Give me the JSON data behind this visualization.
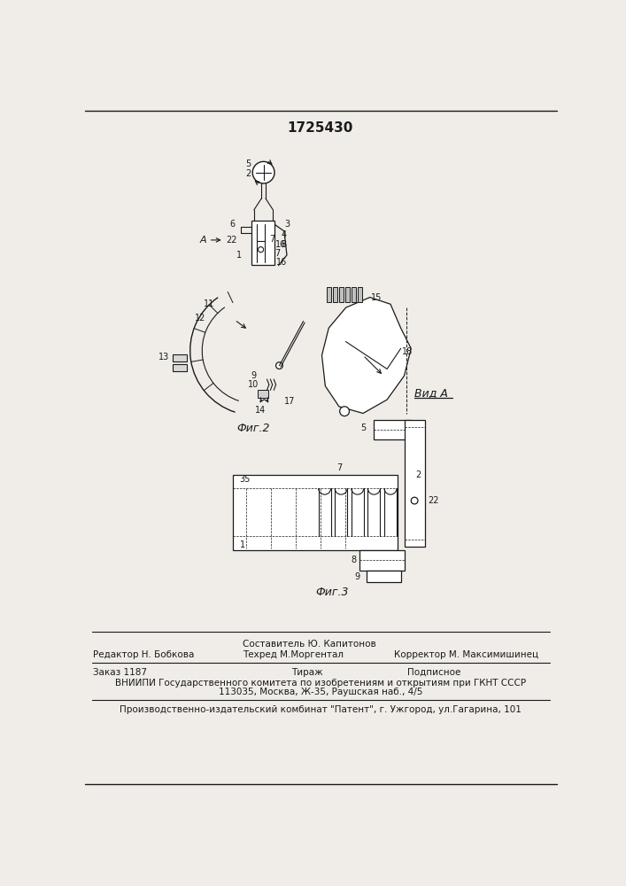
{
  "title": "1725430",
  "bg_color": "#f0ede8",
  "line_color": "#1a1a1a",
  "text_color": "#1a1a1a",
  "fig2_label": "Фиг.2",
  "fig3_label": "Фиг.3",
  "vid_a_label": "Вид A",
  "footer3": "Производственно-издательский комбинат \"Патент\", г. Ужгород, ул.Гагарина, 101"
}
